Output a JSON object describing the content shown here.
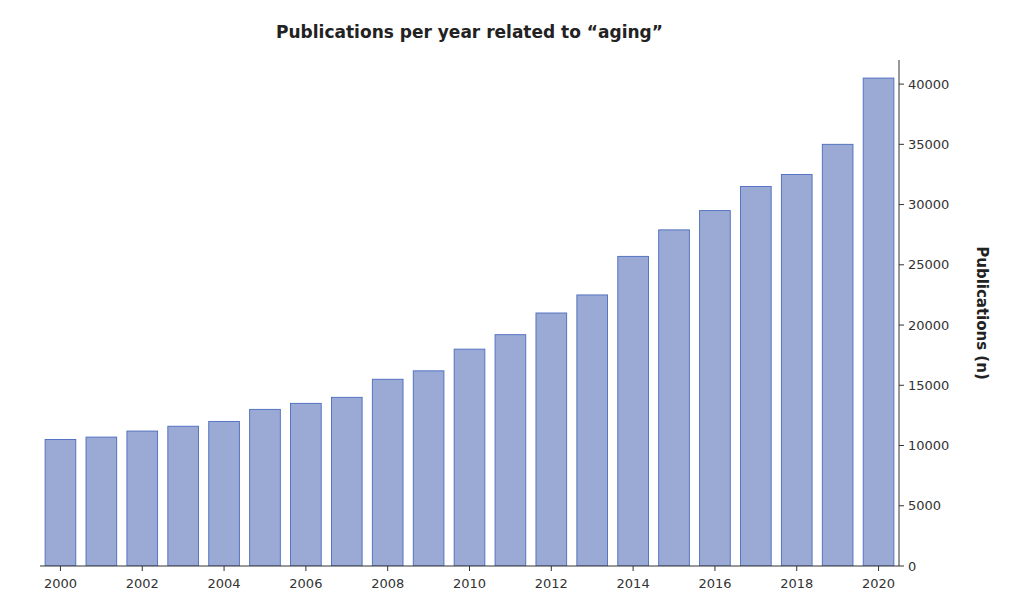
{
  "chart_data": {
    "type": "bar",
    "title": "Publications per year related to “aging”",
    "y_label": "Publications (n)",
    "x": [
      2000,
      2001,
      2002,
      2003,
      2004,
      2005,
      2006,
      2007,
      2008,
      2009,
      2010,
      2011,
      2012,
      2013,
      2014,
      2015,
      2016,
      2017,
      2018,
      2019,
      2020
    ],
    "values": [
      10500,
      10700,
      11200,
      11600,
      12000,
      13000,
      13500,
      14000,
      15500,
      16200,
      18000,
      19200,
      21000,
      22500,
      25700,
      27900,
      29500,
      31500,
      32500,
      35000,
      40500
    ],
    "color": "#9aaad4",
    "xlim": [
      1999.5,
      2020.5
    ],
    "xticks": [
      2000,
      2002,
      2004,
      2006,
      2008,
      2010,
      2012,
      2014,
      2016,
      2018,
      2020
    ],
    "ylim": [
      0,
      42000
    ],
    "yticks": [
      0,
      5000,
      10000,
      15000,
      20000,
      25000,
      30000,
      35000,
      40000
    ],
    "grid": false
  }
}
